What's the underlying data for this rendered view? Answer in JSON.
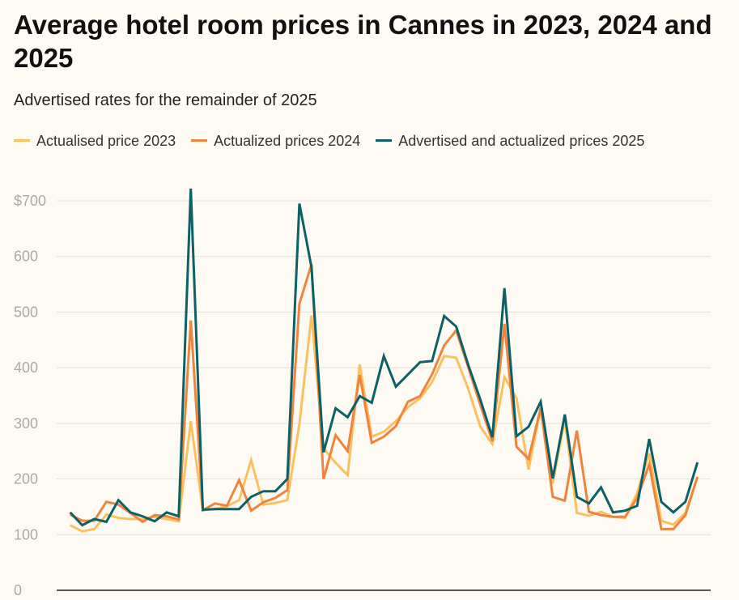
{
  "title": "Average hotel room prices in Cannes in 2023, 2024 and 2025",
  "subtitle": "Advertised rates for the remainder of 2025",
  "colors": {
    "y2023": "#fbc15e",
    "y2024": "#f0843c",
    "y2025": "#0b6166"
  },
  "chart_data": {
    "type": "line",
    "title": "Average hotel room prices in Cannes in 2023, 2024 and 2025",
    "subtitle": "Advertised rates for the remainder of 2025",
    "xlabel": "",
    "ylabel": "",
    "ylim": [
      0,
      700
    ],
    "yticks": [
      0,
      100,
      200,
      300,
      400,
      500,
      600,
      700
    ],
    "ytick_labels": [
      "0",
      "100",
      "200",
      "300",
      "400",
      "500",
      "600",
      "$700"
    ],
    "grid": true,
    "legend_position": "top-left",
    "x": [
      0,
      1,
      2,
      3,
      4,
      5,
      6,
      7,
      8,
      9,
      10,
      11,
      12,
      13,
      14,
      15,
      16,
      17,
      18,
      19,
      20,
      21,
      22,
      23,
      24,
      25,
      26,
      27,
      28,
      29,
      30,
      31,
      32,
      33,
      34,
      35,
      36,
      37,
      38,
      39,
      40,
      41,
      42,
      43,
      44,
      45,
      46,
      47,
      48,
      49,
      50,
      51,
      52
    ],
    "series": [
      {
        "name": "Actualised price 2023",
        "color": "#fbc15e",
        "values": [
          117,
          106,
          110,
          136,
          130,
          128,
          128,
          132,
          128,
          124,
          304,
          144,
          146,
          151,
          162,
          234,
          154,
          157,
          162,
          299,
          494,
          255,
          229,
          207,
          406,
          276,
          285,
          304,
          329,
          345,
          374,
          421,
          418,
          362,
          294,
          263,
          383,
          345,
          217,
          328,
          192,
          307,
          139,
          134,
          141,
          132,
          130,
          175,
          246,
          125,
          118,
          139,
          204
        ]
      },
      {
        "name": "Actualized prices 2024",
        "color": "#f0843c",
        "values": [
          136,
          125,
          125,
          159,
          154,
          139,
          123,
          135,
          133,
          127,
          485,
          144,
          156,
          152,
          198,
          143,
          158,
          166,
          180,
          515,
          586,
          200,
          279,
          250,
          387,
          265,
          276,
          295,
          339,
          349,
          388,
          440,
          467,
          401,
          333,
          268,
          479,
          258,
          236,
          328,
          168,
          161,
          287,
          141,
          135,
          132,
          132,
          166,
          226,
          110,
          110,
          135,
          204
        ]
      },
      {
        "name": "Advertised and actualized prices 2025",
        "color": "#0b6166",
        "values": [
          140,
          117,
          128,
          123,
          162,
          140,
          133,
          124,
          140,
          133,
          722,
          145,
          146,
          146,
          146,
          168,
          178,
          178,
          200,
          695,
          581,
          248,
          327,
          311,
          349,
          337,
          421,
          366,
          388,
          410,
          412,
          493,
          474,
          405,
          343,
          275,
          543,
          277,
          294,
          339,
          201,
          316,
          168,
          156,
          185,
          140,
          143,
          152,
          272,
          159,
          140,
          159,
          230
        ]
      }
    ]
  }
}
